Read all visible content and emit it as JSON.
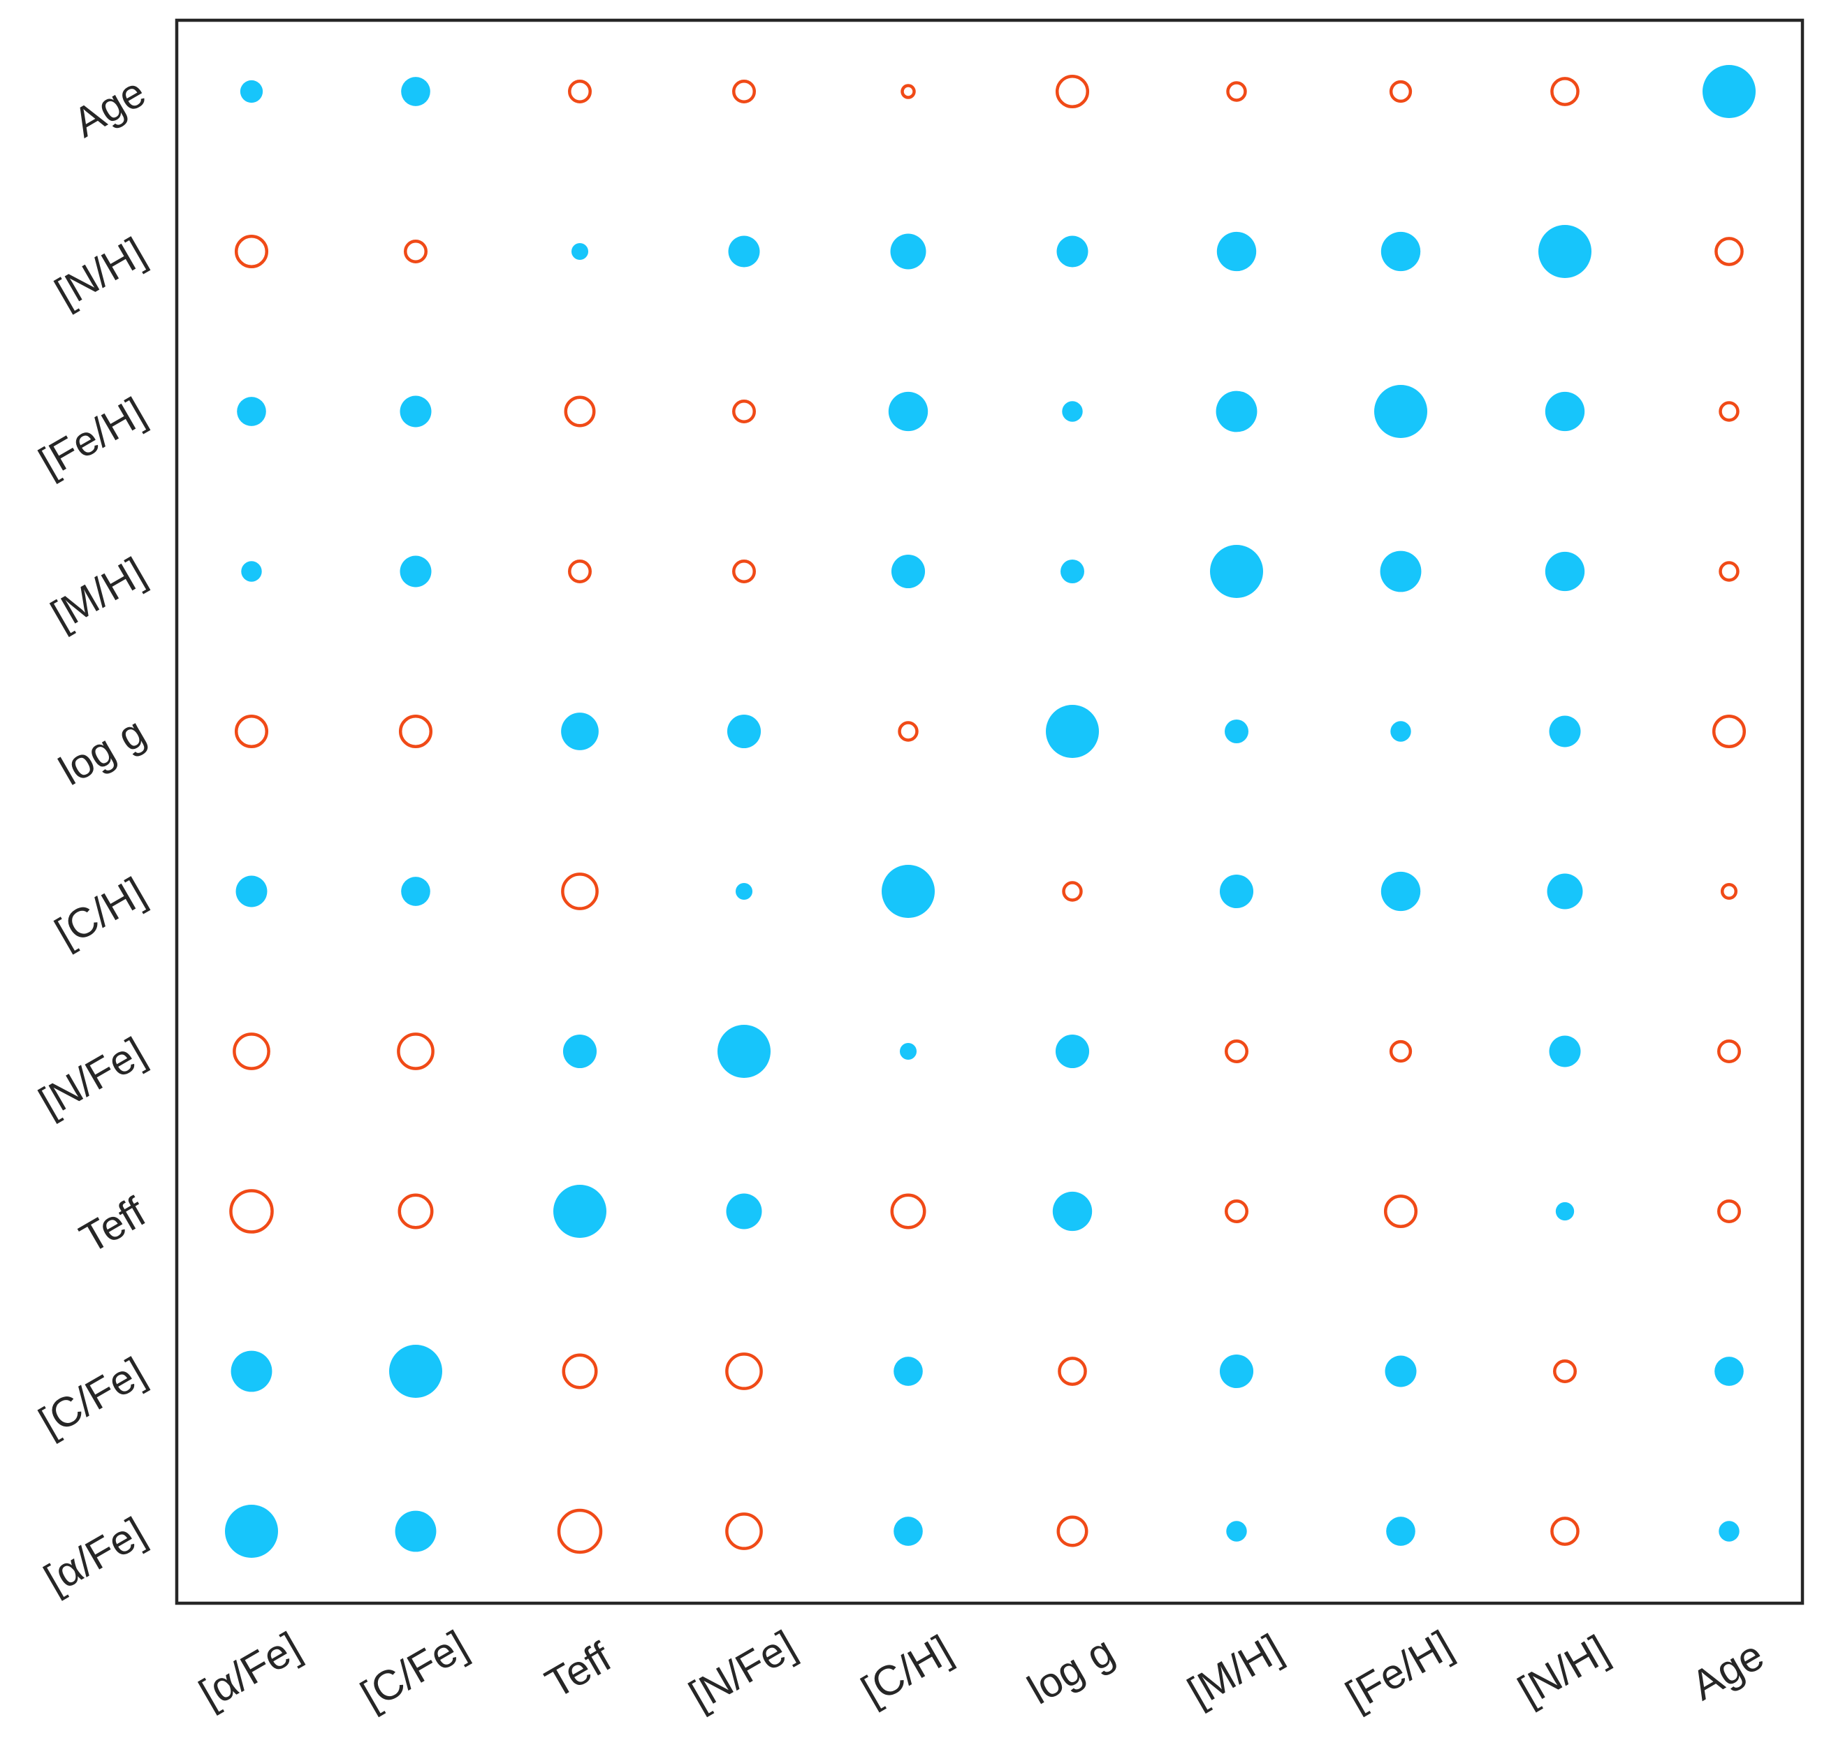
{
  "chart_data": {
    "type": "bubble-matrix",
    "title": "",
    "xlabel": "",
    "ylabel": "",
    "grid": false,
    "legend": "none",
    "x_labels": [
      "[α/Fe]",
      "[C/Fe]",
      "Teff",
      "[N/Fe]",
      "[C/H]",
      "log g",
      "[M/H]",
      "[Fe/H]",
      "[N/H]",
      "Age"
    ],
    "y_labels": [
      "[α/Fe]",
      "[C/Fe]",
      "Teff",
      "[N/Fe]",
      "[C/H]",
      "log g",
      "[M/H]",
      "[Fe/H]",
      "[N/H]",
      "Age"
    ],
    "colors": {
      "positive": "#17c5fb",
      "negative": "#f04a17"
    },
    "matrix": [
      [
        1.0,
        0.6,
        -0.72,
        -0.5,
        0.3,
        -0.35,
        0.15,
        0.3,
        -0.3,
        0.15
      ],
      [
        0.6,
        1.0,
        -0.45,
        -0.5,
        0.3,
        -0.3,
        0.4,
        0.35,
        -0.2,
        0.3
      ],
      [
        -0.7,
        -0.45,
        1.0,
        0.45,
        -0.45,
        0.55,
        -0.2,
        -0.4,
        0.12,
        -0.2
      ],
      [
        -0.5,
        -0.5,
        0.4,
        1.0,
        0.1,
        0.4,
        -0.2,
        -0.18,
        0.35,
        -0.2
      ],
      [
        0.35,
        0.3,
        -0.5,
        0.1,
        1.0,
        -0.15,
        0.4,
        0.55,
        0.45,
        -0.1
      ],
      [
        -0.4,
        -0.4,
        0.5,
        0.4,
        -0.15,
        1.0,
        0.2,
        0.15,
        0.35,
        -0.4
      ],
      [
        0.15,
        0.35,
        -0.2,
        -0.2,
        0.4,
        0.2,
        1.0,
        0.6,
        0.55,
        -0.15
      ],
      [
        0.3,
        0.35,
        -0.35,
        -0.2,
        0.55,
        0.15,
        0.6,
        1.0,
        0.55,
        -0.15
      ],
      [
        -0.4,
        -0.2,
        0.1,
        0.35,
        0.45,
        0.35,
        0.55,
        0.55,
        1.0,
        -0.3
      ],
      [
        0.18,
        0.3,
        -0.2,
        -0.2,
        -0.08,
        -0.4,
        -0.15,
        -0.18,
        -0.3,
        1.0
      ]
    ]
  }
}
